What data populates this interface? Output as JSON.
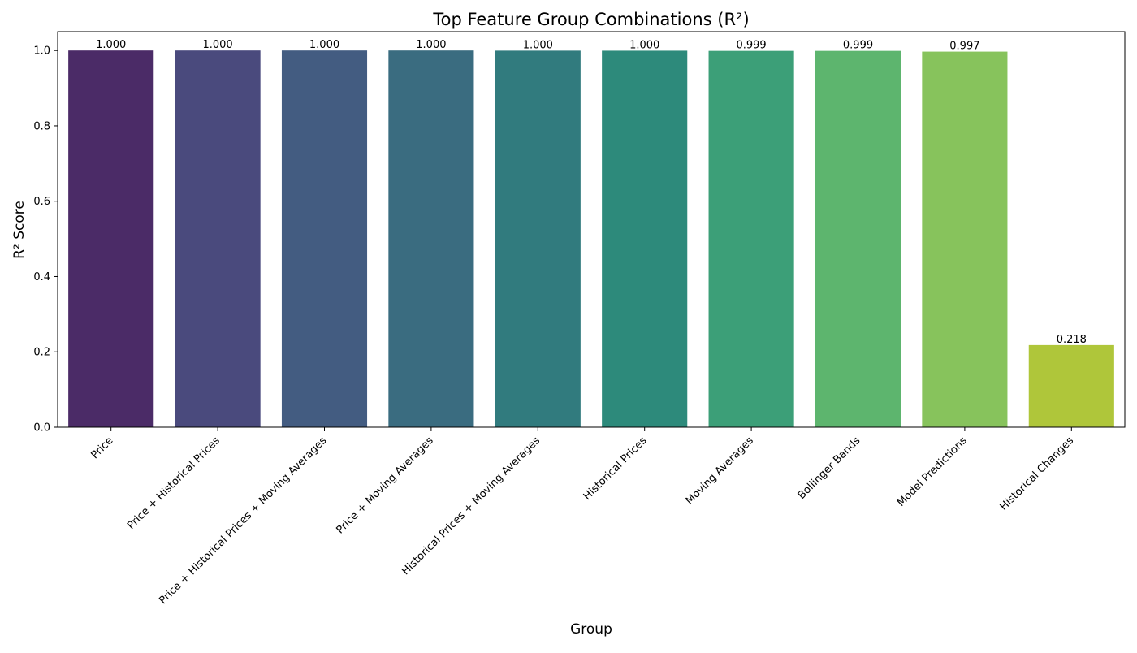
{
  "chart_data": {
    "type": "bar",
    "title": "Top Feature Group Combinations (R²)",
    "xlabel": "Group",
    "ylabel": "R² Score",
    "categories": [
      "Price",
      "Price + Historical Prices",
      "Price + Historical Prices + Moving Averages",
      "Price + Moving Averages",
      "Historical Prices + Moving Averages",
      "Historical Prices",
      "Moving Averages",
      "Bollinger Bands",
      "Model Predictions",
      "Historical Changes"
    ],
    "values": [
      1.0,
      1.0,
      1.0,
      1.0,
      0.9996,
      0.9995,
      0.999,
      0.999,
      0.997,
      0.218
    ],
    "data_labels": [
      "1.000",
      "1.000",
      "1.000",
      "1.000",
      "1.000",
      "1.000",
      "0.999",
      "0.999",
      "0.997",
      "0.218"
    ],
    "colors": [
      "#4b2b67",
      "#4a4a7d",
      "#435c81",
      "#3a6c80",
      "#317b7e",
      "#2d8a7b",
      "#3c9f78",
      "#5db56e",
      "#87c35c",
      "#afc63a"
    ],
    "ylim": [
      0,
      1.05
    ],
    "yticks": [
      0.0,
      0.2,
      0.4,
      0.6,
      0.8,
      1.0
    ],
    "ytick_labels": [
      "0.0",
      "0.2",
      "0.4",
      "0.6",
      "0.8",
      "1.0"
    ],
    "grid": false,
    "legend": "none"
  }
}
